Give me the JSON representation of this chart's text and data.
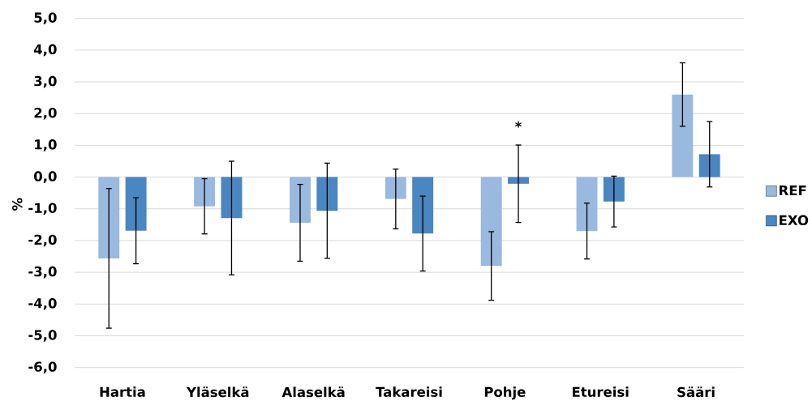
{
  "chart_data": {
    "type": "bar",
    "ylabel": "%",
    "categories": [
      "Hartia",
      "Yläselkä",
      "Alaselkä",
      "Takareisi",
      "Pohje",
      "Etureisi",
      "Sääri"
    ],
    "series": [
      {
        "name": "REF",
        "color": "#9ab9df",
        "values": [
          -2.56,
          -0.92,
          -1.44,
          -0.69,
          -2.8,
          -1.7,
          2.6
        ],
        "errors": [
          2.2,
          0.87,
          1.21,
          0.94,
          1.08,
          0.88,
          1.0
        ]
      },
      {
        "name": "EXO",
        "color": "#4a86c0",
        "values": [
          -1.69,
          -1.29,
          -1.06,
          -1.78,
          -0.21,
          -0.77,
          0.72
        ],
        "errors": [
          1.04,
          1.79,
          1.5,
          1.18,
          1.22,
          0.8,
          1.03
        ]
      }
    ],
    "ylim": [
      -6,
      5
    ],
    "yticks": [
      {
        "value": -6,
        "label": "-6,0"
      },
      {
        "value": -5,
        "label": "-5,0"
      },
      {
        "value": -4,
        "label": "-4,0"
      },
      {
        "value": -3,
        "label": "-3,0"
      },
      {
        "value": -2,
        "label": "-2,0"
      },
      {
        "value": -1,
        "label": "-1,0"
      },
      {
        "value": 0,
        "label": "0,0"
      },
      {
        "value": 1,
        "label": "1,0"
      },
      {
        "value": 2,
        "label": "2,0"
      },
      {
        "value": 3,
        "label": "3,0"
      },
      {
        "value": 4,
        "label": "4,0"
      },
      {
        "value": 5,
        "label": "5,0"
      }
    ],
    "grid": "y",
    "legend": "right",
    "annotations": [
      "*"
    ]
  }
}
